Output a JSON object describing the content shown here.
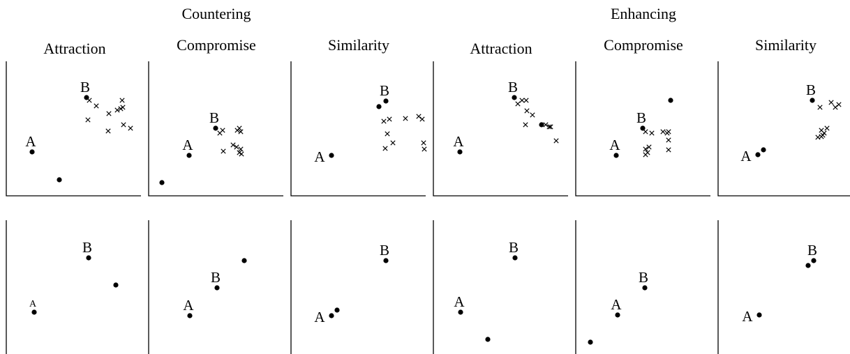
{
  "groups": [
    {
      "label": "Countering"
    },
    {
      "label": "Enhancing"
    }
  ],
  "columns": [
    {
      "title": "Attraction"
    },
    {
      "title": "Compromise"
    },
    {
      "title": "Similarity"
    },
    {
      "title": "Attraction"
    },
    {
      "title": "Compromise"
    },
    {
      "title": "Similarity"
    }
  ],
  "panels": [
    {
      "row": 0,
      "col": 0,
      "points": [
        {
          "label": "A",
          "x": 37,
          "y": 130
        },
        {
          "label": "B",
          "x": 115,
          "y": 52
        },
        {
          "x": 76,
          "y": 170
        }
      ],
      "crosses": [
        [
          119,
          56
        ],
        [
          129,
          64
        ],
        [
          117,
          84
        ],
        [
          147,
          75
        ],
        [
          146,
          100
        ],
        [
          159,
          70
        ],
        [
          164,
          68
        ],
        [
          167,
          66
        ],
        [
          166,
          56
        ],
        [
          168,
          91
        ],
        [
          178,
          96
        ]
      ]
    },
    {
      "row": 0,
      "col": 1,
      "points": [
        {
          "label": "A",
          "x": 58,
          "y": 135
        },
        {
          "label": "B",
          "x": 96,
          "y": 96
        },
        {
          "x": 19,
          "y": 174
        }
      ],
      "crosses": [
        [
          102,
          103
        ],
        [
          106,
          99
        ],
        [
          127,
          99
        ],
        [
          132,
          101
        ],
        [
          130,
          96
        ],
        [
          121,
          120
        ],
        [
          126,
          123
        ],
        [
          130,
          131
        ],
        [
          132,
          126
        ],
        [
          133,
          133
        ],
        [
          107,
          129
        ]
      ]
    },
    {
      "row": 0,
      "col": 2,
      "points": [
        {
          "label": "A",
          "x": 58,
          "y": 135
        },
        {
          "label": "B",
          "x": 136,
          "y": 57
        },
        {
          "x": 126,
          "y": 65
        }
      ],
      "crosses": [
        [
          133,
          86
        ],
        [
          141,
          83
        ],
        [
          138,
          104
        ],
        [
          146,
          117
        ],
        [
          135,
          125
        ],
        [
          164,
          82
        ],
        [
          183,
          79
        ],
        [
          188,
          83
        ],
        [
          190,
          117
        ],
        [
          191,
          126
        ]
      ]
    },
    {
      "row": 0,
      "col": 3,
      "points": [
        {
          "label": "A",
          "x": 38,
          "y": 130
        },
        {
          "label": "B",
          "x": 116,
          "y": 52
        },
        {
          "x": 155,
          "y": 91
        }
      ],
      "crosses": [
        [
          121,
          61
        ],
        [
          127,
          56
        ],
        [
          133,
          56
        ],
        [
          134,
          71
        ],
        [
          142,
          77
        ],
        [
          132,
          91
        ],
        [
          161,
          91
        ],
        [
          166,
          94
        ],
        [
          168,
          94
        ],
        [
          176,
          114
        ]
      ]
    },
    {
      "row": 0,
      "col": 4,
      "points": [
        {
          "label": "A",
          "x": 58,
          "y": 135
        },
        {
          "label": "B",
          "x": 96,
          "y": 96
        },
        {
          "x": 136,
          "y": 56
        }
      ],
      "crosses": [
        [
          100,
          101
        ],
        [
          109,
          103
        ],
        [
          125,
          101
        ],
        [
          131,
          103
        ],
        [
          133,
          101
        ],
        [
          133,
          113
        ],
        [
          133,
          127
        ],
        [
          105,
          123
        ],
        [
          100,
          126
        ],
        [
          103,
          131
        ],
        [
          100,
          134
        ]
      ]
    },
    {
      "row": 0,
      "col": 5,
      "points": [
        {
          "label": "A",
          "x": 57,
          "y": 134
        },
        {
          "label": "B",
          "x": 135,
          "y": 56
        },
        {
          "x": 65,
          "y": 127
        }
      ],
      "crosses": [
        [
          146,
          66
        ],
        [
          162,
          59
        ],
        [
          168,
          66
        ],
        [
          173,
          62
        ],
        [
          190,
          88
        ],
        [
          143,
          109
        ],
        [
          148,
          99
        ],
        [
          150,
          106
        ],
        [
          148,
          108
        ],
        [
          152,
          103
        ],
        [
          156,
          96
        ]
      ]
    },
    {
      "row": 1,
      "col": 0,
      "points": [
        {
          "label": "A",
          "x": 40,
          "y": 132,
          "small": true
        },
        {
          "label": "B",
          "x": 118,
          "y": 54
        },
        {
          "x": 157,
          "y": 93
        }
      ]
    },
    {
      "row": 1,
      "col": 1,
      "points": [
        {
          "label": "A",
          "x": 59,
          "y": 137
        },
        {
          "label": "B",
          "x": 98,
          "y": 97
        },
        {
          "x": 137,
          "y": 58
        }
      ]
    },
    {
      "row": 1,
      "col": 2,
      "points": [
        {
          "label": "A",
          "x": 58,
          "y": 137
        },
        {
          "label": "B",
          "x": 136,
          "y": 58
        },
        {
          "x": 66,
          "y": 129
        }
      ]
    },
    {
      "row": 1,
      "col": 3,
      "points": [
        {
          "label": "A",
          "x": 39,
          "y": 132
        },
        {
          "label": "B",
          "x": 117,
          "y": 54
        },
        {
          "x": 78,
          "y": 171
        }
      ]
    },
    {
      "row": 1,
      "col": 4,
      "points": [
        {
          "label": "A",
          "x": 60,
          "y": 136
        },
        {
          "label": "B",
          "x": 99,
          "y": 97
        },
        {
          "x": 21,
          "y": 175
        }
      ]
    },
    {
      "row": 1,
      "col": 5,
      "points": [
        {
          "label": "A",
          "x": 59,
          "y": 136
        },
        {
          "label": "B",
          "x": 137,
          "y": 58
        },
        {
          "x": 129,
          "y": 65
        }
      ]
    }
  ]
}
